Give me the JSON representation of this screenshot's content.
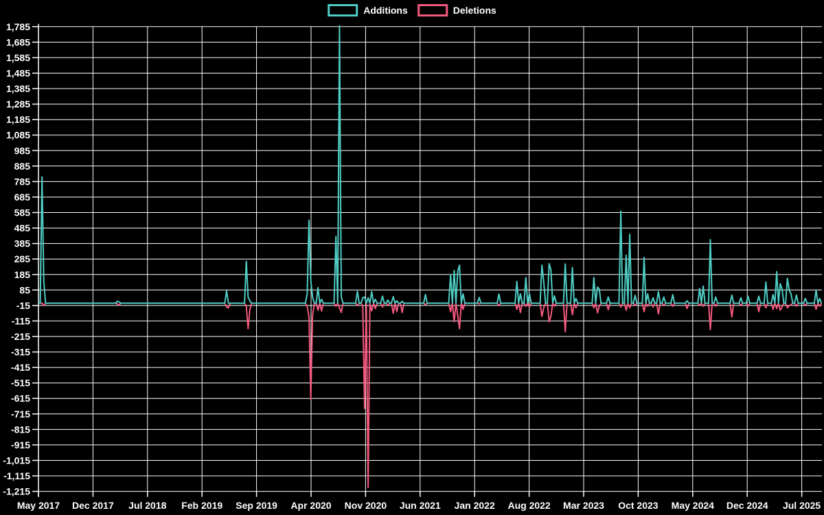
{
  "page": {
    "background": "#000000",
    "grid_color": "#ffffff",
    "text_color": "#ffffff"
  },
  "legend": {
    "items": [
      {
        "label": "Additions",
        "color": "#4ecdc4"
      },
      {
        "label": "Deletions",
        "color": "#f3597d"
      }
    ]
  },
  "chart_data": {
    "type": "line",
    "title": "",
    "xlabel": "",
    "ylabel": "",
    "grid": true,
    "legend_position": "top-center",
    "x_tick_labels": [
      "May 2017",
      "Dec 2017",
      "Jul 2018",
      "Feb 2019",
      "Sep 2019",
      "Apr 2020",
      "Nov 2020",
      "Jun 2021",
      "Jan 2022",
      "Aug 2022",
      "Mar 2023",
      "Oct 2023",
      "May 2024",
      "Dec 2024",
      "Jul 2025"
    ],
    "x_tick_interval_months": 7,
    "y_axis": {
      "min": -1215,
      "max": 1785,
      "step": 100
    },
    "series": [
      {
        "name": "Additions",
        "color": "#4ecdc4"
      },
      {
        "name": "Deletions",
        "color": "#f3597d",
        "plotted_as": "negative"
      }
    ],
    "weeks_total": 438,
    "points_format": [
      "week_index_from_May_2017",
      "additions",
      "deletions"
    ],
    "points_note": "weeks not listed have additions=0 and deletions=0",
    "points_sparse": [
      [
        2,
        815,
        0
      ],
      [
        3,
        135,
        15
      ],
      [
        44,
        12,
        5
      ],
      [
        45,
        8,
        12
      ],
      [
        105,
        80,
        25
      ],
      [
        106,
        0,
        30
      ],
      [
        116,
        270,
        20
      ],
      [
        117,
        40,
        165
      ],
      [
        118,
        15,
        40
      ],
      [
        150,
        60,
        20
      ],
      [
        151,
        535,
        90
      ],
      [
        152,
        150,
        620
      ],
      [
        153,
        40,
        80
      ],
      [
        156,
        100,
        45
      ],
      [
        158,
        25,
        50
      ],
      [
        166,
        430,
        20
      ],
      [
        168,
        1790,
        30
      ],
      [
        169,
        40,
        60
      ],
      [
        178,
        76,
        15
      ],
      [
        181,
        35,
        20
      ],
      [
        182,
        40,
        680
      ],
      [
        184,
        35,
        1190
      ],
      [
        186,
        75,
        50
      ],
      [
        188,
        25,
        35
      ],
      [
        192,
        45,
        25
      ],
      [
        195,
        20,
        15
      ],
      [
        198,
        42,
        65
      ],
      [
        200,
        15,
        55
      ],
      [
        203,
        12,
        60
      ],
      [
        216,
        55,
        10
      ],
      [
        230,
        185,
        55
      ],
      [
        232,
        210,
        120
      ],
      [
        234,
        205,
        80
      ],
      [
        235,
        245,
        165
      ],
      [
        237,
        60,
        40
      ],
      [
        246,
        37,
        5
      ],
      [
        257,
        59,
        15
      ],
      [
        267,
        140,
        40
      ],
      [
        269,
        60,
        60
      ],
      [
        272,
        165,
        20
      ],
      [
        274,
        60,
        25
      ],
      [
        281,
        245,
        85
      ],
      [
        282,
        140,
        30
      ],
      [
        285,
        255,
        120
      ],
      [
        286,
        215,
        85
      ],
      [
        288,
        47,
        20
      ],
      [
        294,
        253,
        185
      ],
      [
        298,
        230,
        75
      ],
      [
        300,
        30,
        30
      ],
      [
        310,
        166,
        30
      ],
      [
        312,
        104,
        62
      ],
      [
        313,
        91,
        20
      ],
      [
        318,
        40,
        42
      ],
      [
        325,
        595,
        25
      ],
      [
        328,
        310,
        45
      ],
      [
        330,
        445,
        30
      ],
      [
        333,
        50,
        15
      ],
      [
        338,
        295,
        55
      ],
      [
        340,
        60,
        20
      ],
      [
        343,
        35,
        25
      ],
      [
        346,
        75,
        69
      ],
      [
        349,
        40,
        15
      ],
      [
        354,
        55,
        20
      ],
      [
        362,
        15,
        35
      ],
      [
        369,
        95,
        15
      ],
      [
        371,
        110,
        20
      ],
      [
        375,
        410,
        170
      ],
      [
        378,
        40,
        20
      ],
      [
        387,
        52,
        89
      ],
      [
        392,
        35,
        15
      ],
      [
        396,
        45,
        20
      ],
      [
        402,
        45,
        55
      ],
      [
        406,
        136,
        30
      ],
      [
        410,
        55,
        40
      ],
      [
        412,
        204,
        35
      ],
      [
        414,
        126,
        45
      ],
      [
        415,
        91,
        25
      ],
      [
        418,
        160,
        30
      ],
      [
        419,
        85,
        15
      ],
      [
        420,
        60,
        10
      ],
      [
        423,
        52,
        20
      ],
      [
        428,
        30,
        15
      ],
      [
        434,
        85,
        40
      ],
      [
        436,
        30,
        20
      ]
    ]
  }
}
